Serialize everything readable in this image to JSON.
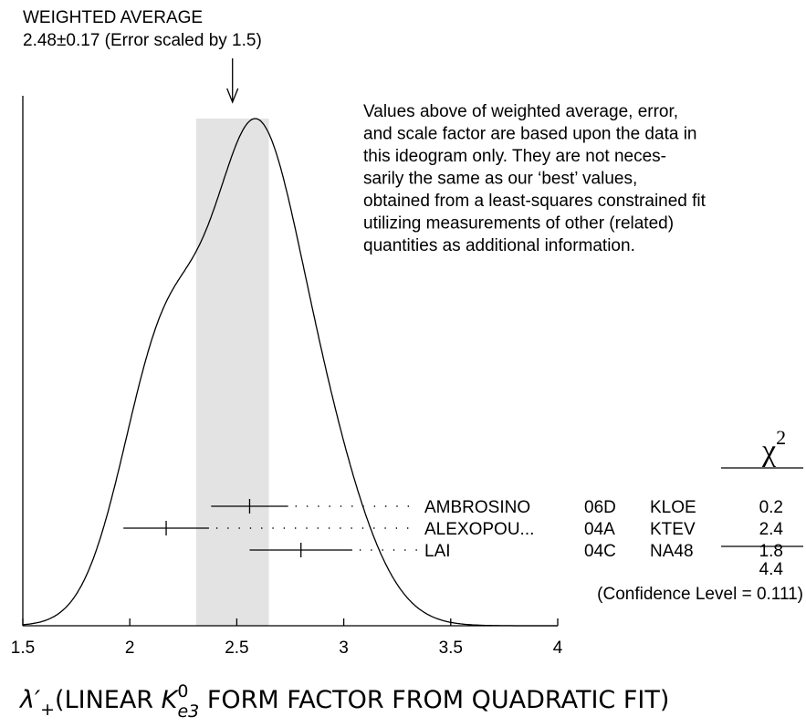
{
  "chart_data": {
    "type": "ideogram",
    "title": "WEIGHTED AVERAGE",
    "average": {
      "value": 2.48,
      "error": 0.17,
      "label": "2.48±0.17 (Error scaled by 1.5)"
    },
    "note": [
      "Values above of weighted average, error,",
      "and scale factor are based upon the data in",
      "this ideogram only.  They are not neces-",
      "sarily the same as our ‘best’ values,",
      "obtained from a least-squares constrained fit",
      "utilizing measurements of other (related)",
      "quantities as additional information."
    ],
    "chi2_header": "χ",
    "chi2_header_sup": "2",
    "measurements": [
      {
        "name": "AMBROSINO",
        "code": "06D",
        "experiment": "KLOE",
        "value": 2.56,
        "error": 0.18,
        "chi2": 0.2
      },
      {
        "name": "ALEXOPOU...",
        "code": "04A",
        "experiment": "KTEV",
        "value": 2.17,
        "error": 0.2,
        "chi2": 2.4
      },
      {
        "name": "LAI",
        "code": "04C",
        "experiment": "NA48",
        "value": 2.8,
        "error": 0.24,
        "chi2": 1.8
      }
    ],
    "chi2_total": 4.4,
    "confidence_level": "(Confidence Level = 0.111)",
    "xlim": [
      1.5,
      4
    ],
    "xticks": [
      1.5,
      2,
      2.5,
      3,
      3.5,
      4
    ],
    "x_label_parts": [
      "λ′",
      "+",
      "(LINEAR ",
      "K",
      "0",
      "e3",
      " FORM FACTOR FROM QUADRATIC FIT)"
    ]
  }
}
